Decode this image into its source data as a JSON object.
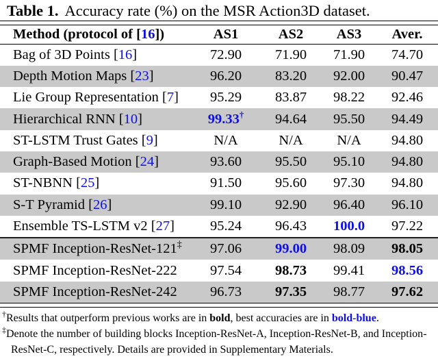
{
  "accent_blue": "#0f0fe6",
  "row_shade": "#c9c9c9",
  "caption": {
    "label": "Table 1.",
    "text": "Accuracy rate (%) on the MSR Action3D dataset."
  },
  "header": {
    "method_pre": "Method (protocol of [",
    "method_ref": "16",
    "method_post": "])",
    "cols": [
      "AS1",
      "AS2",
      "AS3",
      "Aver."
    ]
  },
  "rows": [
    {
      "name": "Bag of 3D Points",
      "bl": " [",
      "ref": "16",
      "br": "]",
      "sup": "",
      "cells": [
        {
          "t": "72.90",
          "sup": "",
          "cls": "num"
        },
        {
          "t": "71.90",
          "sup": "",
          "cls": "num"
        },
        {
          "t": "71.90",
          "sup": "",
          "cls": "num"
        },
        {
          "t": "74.70",
          "sup": "",
          "cls": "num"
        }
      ]
    },
    {
      "name": "Depth Motion Maps",
      "bl": " [",
      "ref": "23",
      "br": "]",
      "sup": "",
      "cells": [
        {
          "t": "96.20",
          "sup": "",
          "cls": "num"
        },
        {
          "t": "83.20",
          "sup": "",
          "cls": "num"
        },
        {
          "t": "92.00",
          "sup": "",
          "cls": "num"
        },
        {
          "t": "90.47",
          "sup": "",
          "cls": "num"
        }
      ]
    },
    {
      "name": "Lie Group Representation",
      "bl": " [",
      "ref": "7",
      "br": "]",
      "sup": "",
      "cells": [
        {
          "t": "95.29",
          "sup": "",
          "cls": "num"
        },
        {
          "t": "83.87",
          "sup": "",
          "cls": "num"
        },
        {
          "t": "98.22",
          "sup": "",
          "cls": "num"
        },
        {
          "t": "92.46",
          "sup": "",
          "cls": "num"
        }
      ]
    },
    {
      "name": "Hierarchical RNN",
      "bl": " [",
      "ref": "10",
      "br": "]",
      "sup": "",
      "cells": [
        {
          "t": "99.33",
          "sup": "†",
          "cls": "num boldblue"
        },
        {
          "t": "94.64",
          "sup": "",
          "cls": "num"
        },
        {
          "t": "95.50",
          "sup": "",
          "cls": "num"
        },
        {
          "t": "94.49",
          "sup": "",
          "cls": "num"
        }
      ]
    },
    {
      "name": "ST-LSTM Trust Gates",
      "bl": " [",
      "ref": "9",
      "br": "]",
      "sup": "",
      "cells": [
        {
          "t": "N/A",
          "sup": "",
          "cls": "num"
        },
        {
          "t": "N/A",
          "sup": "",
          "cls": "num"
        },
        {
          "t": "N/A",
          "sup": "",
          "cls": "num"
        },
        {
          "t": "94.80",
          "sup": "",
          "cls": "num"
        }
      ]
    },
    {
      "name": "Graph-Based Motion",
      "bl": " [",
      "ref": "24",
      "br": "]",
      "sup": "",
      "cells": [
        {
          "t": "93.60",
          "sup": "",
          "cls": "num"
        },
        {
          "t": "95.50",
          "sup": "",
          "cls": "num"
        },
        {
          "t": "95.10",
          "sup": "",
          "cls": "num"
        },
        {
          "t": "94.80",
          "sup": "",
          "cls": "num"
        }
      ]
    },
    {
      "name": "ST-NBNN",
      "bl": " [",
      "ref": "25",
      "br": "]",
      "sup": "",
      "cells": [
        {
          "t": "91.50",
          "sup": "",
          "cls": "num"
        },
        {
          "t": "95.60",
          "sup": "",
          "cls": "num"
        },
        {
          "t": "97.30",
          "sup": "",
          "cls": "num"
        },
        {
          "t": "94.80",
          "sup": "",
          "cls": "num"
        }
      ]
    },
    {
      "name": "S-T Pyramid",
      "bl": " [",
      "ref": "26",
      "br": "]",
      "sup": "",
      "cells": [
        {
          "t": "99.10",
          "sup": "",
          "cls": "num"
        },
        {
          "t": "92.90",
          "sup": "",
          "cls": "num"
        },
        {
          "t": "96.40",
          "sup": "",
          "cls": "num"
        },
        {
          "t": "96.10",
          "sup": "",
          "cls": "num"
        }
      ]
    },
    {
      "name": "Ensemble TS-LSTM v2",
      "bl": " [",
      "ref": "27",
      "br": "]",
      "sup": "",
      "cells": [
        {
          "t": "95.24",
          "sup": "",
          "cls": "num"
        },
        {
          "t": "96.43",
          "sup": "",
          "cls": "num"
        },
        {
          "t": "100.0",
          "sup": "",
          "cls": "num boldblue"
        },
        {
          "t": "97.22",
          "sup": "",
          "cls": "num"
        }
      ]
    },
    {
      "name": "SPMF Inception-ResNet-121",
      "bl": "",
      "ref": "",
      "br": "",
      "sup": "‡",
      "cells": [
        {
          "t": "97.06",
          "sup": "",
          "cls": "num"
        },
        {
          "t": "99.00",
          "sup": "",
          "cls": "num boldblue"
        },
        {
          "t": "98.09",
          "sup": "",
          "cls": "num"
        },
        {
          "t": "98.05",
          "sup": "",
          "cls": "num bold"
        }
      ]
    },
    {
      "name": "SPMF Inception-ResNet-222",
      "bl": "",
      "ref": "",
      "br": "",
      "sup": "",
      "cells": [
        {
          "t": "97.54",
          "sup": "",
          "cls": "num"
        },
        {
          "t": "98.73",
          "sup": "",
          "cls": "num bold"
        },
        {
          "t": "99.41",
          "sup": "",
          "cls": "num"
        },
        {
          "t": "98.56",
          "sup": "",
          "cls": "num boldblue"
        }
      ]
    },
    {
      "name": "SPMF Inception-ResNet-242",
      "bl": "",
      "ref": "",
      "br": "",
      "sup": "",
      "cells": [
        {
          "t": "96.73",
          "sup": "",
          "cls": "num"
        },
        {
          "t": "97.35",
          "sup": "",
          "cls": "num bold"
        },
        {
          "t": "98.77",
          "sup": "",
          "cls": "num"
        },
        {
          "t": "97.62",
          "sup": "",
          "cls": "num bold"
        }
      ]
    }
  ],
  "footnotes": {
    "fn1": {
      "sup": "†",
      "t1": "Results that outperform previous works are in ",
      "bold_word": "bold",
      "t2": ", best accuracies are in ",
      "blue_word": "bold-blue",
      "t3": "."
    },
    "fn2": {
      "sup": "‡",
      "text": "Denote the number of building blocks Inception-ResNet-A, Inception-ResNet-B, and Inception-ResNet-C, respectively. Details are provided in Supplementary Materials."
    }
  }
}
